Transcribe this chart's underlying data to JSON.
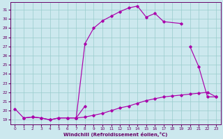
{
  "xlabel": "Windchill (Refroidissement éolien,°C)",
  "bg_color": "#cce8ee",
  "grid_color": "#99cccc",
  "line_color": "#aa00aa",
  "xlim": [
    -0.5,
    23.5
  ],
  "ylim": [
    18.5,
    31.8
  ],
  "yticks": [
    19,
    20,
    21,
    22,
    23,
    24,
    25,
    26,
    27,
    28,
    29,
    30,
    31
  ],
  "xticks": [
    0,
    1,
    2,
    3,
    4,
    5,
    6,
    7,
    8,
    9,
    10,
    11,
    12,
    13,
    14,
    15,
    16,
    17,
    18,
    19,
    20,
    21,
    22,
    23
  ],
  "curve1_x": [
    0,
    1,
    2,
    3,
    4,
    5,
    6,
    7,
    8,
    9,
    10,
    11,
    12,
    13,
    14,
    15,
    16,
    17,
    19
  ],
  "curve1_y": [
    20.2,
    19.2,
    19.3,
    19.2,
    19.0,
    19.2,
    19.2,
    19.2,
    27.3,
    29.0,
    29.8,
    30.3,
    30.8,
    31.2,
    31.4,
    30.2,
    30.6,
    29.7,
    29.5
  ],
  "curve2_x": [
    7,
    8,
    20,
    21,
    22,
    23
  ],
  "curve2_y": [
    19.2,
    20.5,
    27.0,
    24.8,
    21.5,
    21.5
  ],
  "curve2_segments": [
    [
      0,
      2
    ],
    [
      2,
      6
    ]
  ],
  "curve3_x": [
    1,
    2,
    3,
    4,
    5,
    6,
    7,
    8,
    9,
    10,
    11,
    12,
    13,
    14,
    15,
    16,
    17,
    18,
    19,
    20,
    21,
    22,
    23
  ],
  "curve3_y": [
    19.2,
    19.3,
    19.2,
    19.0,
    19.2,
    19.2,
    19.2,
    19.3,
    19.5,
    19.7,
    20.0,
    20.3,
    20.5,
    20.8,
    21.1,
    21.3,
    21.5,
    21.6,
    21.7,
    21.8,
    21.9,
    22.0,
    21.5
  ]
}
